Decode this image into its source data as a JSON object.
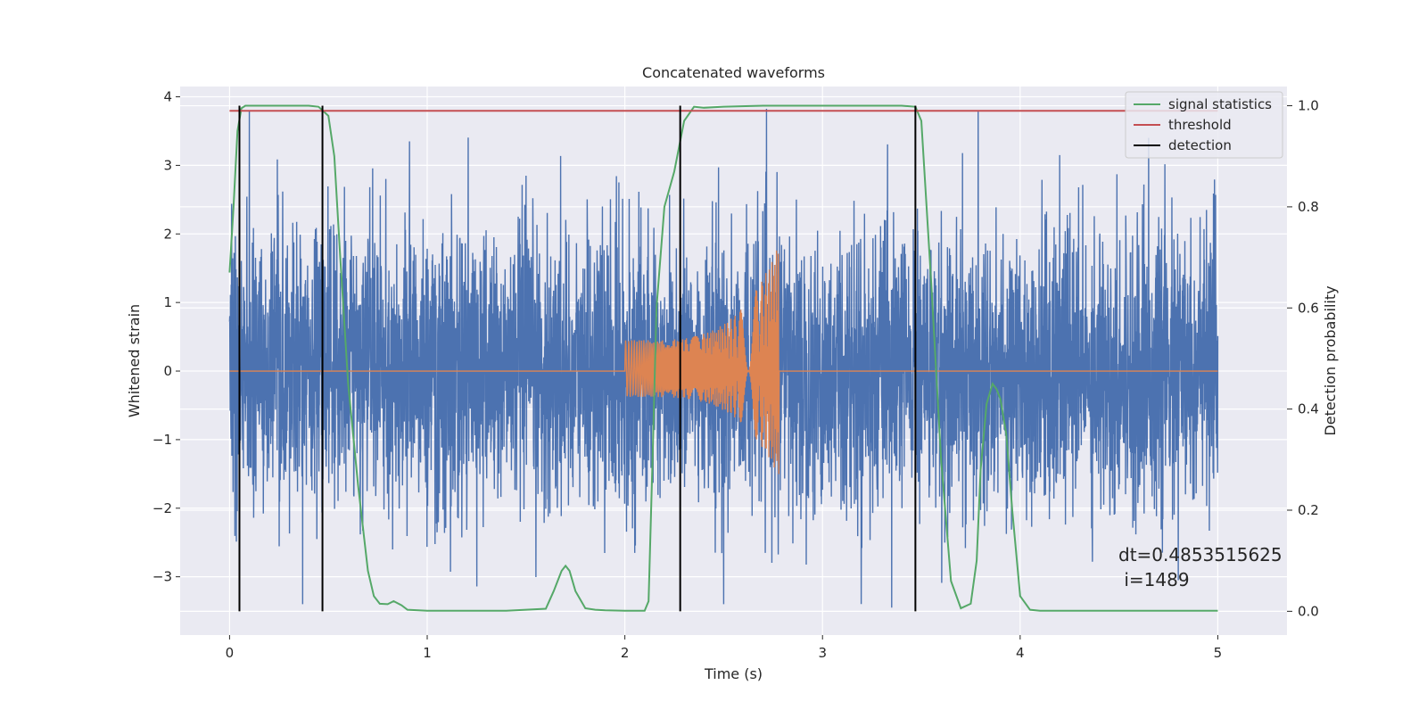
{
  "chart_data": {
    "type": "line",
    "title": "Concatenated waveforms",
    "xlabel": "Time (s)",
    "ylabel_left": "Whitened strain",
    "ylabel_right": "Detection probability",
    "xlim": [
      -0.25,
      5.35
    ],
    "ylim_left": [
      -3.85,
      4.15
    ],
    "ylim_right": [
      -0.047,
      1.038
    ],
    "x_ticks": [
      0,
      1,
      2,
      3,
      4,
      5
    ],
    "y_left_ticks": [
      -3,
      -2,
      -1,
      0,
      1,
      2,
      3,
      4
    ],
    "y_right_ticks": [
      0.0,
      0.2,
      0.4,
      0.6,
      0.8,
      1.0
    ],
    "grid": true,
    "legend_position": "top-right",
    "series": [
      {
        "name": "",
        "axis": "left",
        "color": "#4c72b0",
        "kind": "noise",
        "x_range": [
          0,
          5
        ],
        "typical_amplitude": 1.0,
        "peaks": [
          {
            "x": 0.1,
            "y": 3.8
          },
          {
            "x": 0.37,
            "y": -3.4
          },
          {
            "x": 0.91,
            "y": 3.35
          },
          {
            "x": 1.5,
            "y": 2.85
          },
          {
            "x": 2.5,
            "y": -3.4
          },
          {
            "x": 3.35,
            "y": -3.45
          },
          {
            "x": 4.2,
            "y": 3.15
          },
          {
            "x": 4.65,
            "y": 3.4
          },
          {
            "x": 4.8,
            "y": -3.05
          }
        ]
      },
      {
        "name": "",
        "axis": "left",
        "color": "#dd8452",
        "kind": "chirp",
        "x_range": [
          0,
          5
        ],
        "chirp_start": 2.0,
        "chirp_end": 2.78,
        "start_amplitude": 0.45,
        "peak_amplitude": 1.85,
        "min_amplitude": -1.55
      },
      {
        "name": "signal statistics",
        "axis": "right",
        "color": "#55a868",
        "x": [
          0,
          0.02,
          0.04,
          0.06,
          0.08,
          0.1,
          0.15,
          0.2,
          0.3,
          0.4,
          0.45,
          0.5,
          0.53,
          0.56,
          0.6,
          0.65,
          0.7,
          0.73,
          0.76,
          0.8,
          0.83,
          0.87,
          0.9,
          1.0,
          1.2,
          1.4,
          1.6,
          1.64,
          1.68,
          1.7,
          1.72,
          1.75,
          1.8,
          1.85,
          1.9,
          2.0,
          2.1,
          2.12,
          2.14,
          2.16,
          2.2,
          2.25,
          2.3,
          2.35,
          2.4,
          2.5,
          2.7,
          3.0,
          3.2,
          3.4,
          3.47,
          3.5,
          3.55,
          3.6,
          3.65,
          3.7,
          3.75,
          3.78,
          3.8,
          3.83,
          3.86,
          3.88,
          3.9,
          3.93,
          3.96,
          4.0,
          4.05,
          4.1,
          4.2,
          4.5,
          4.8,
          5.0
        ],
        "y": [
          0.67,
          0.8,
          0.95,
          0.995,
          1.0,
          1.0,
          1.0,
          1.0,
          1.0,
          1.0,
          0.998,
          0.98,
          0.9,
          0.7,
          0.45,
          0.25,
          0.08,
          0.03,
          0.015,
          0.014,
          0.02,
          0.012,
          0.003,
          0.001,
          0.001,
          0.001,
          0.005,
          0.04,
          0.08,
          0.09,
          0.08,
          0.04,
          0.006,
          0.003,
          0.002,
          0.001,
          0.001,
          0.02,
          0.3,
          0.6,
          0.8,
          0.87,
          0.97,
          0.998,
          0.996,
          0.998,
          1.0,
          1.0,
          1.0,
          1.0,
          0.998,
          0.97,
          0.65,
          0.3,
          0.06,
          0.006,
          0.015,
          0.1,
          0.28,
          0.41,
          0.45,
          0.44,
          0.42,
          0.35,
          0.2,
          0.03,
          0.003,
          0.001,
          0.001,
          0.001,
          0.001,
          0.001
        ]
      },
      {
        "name": "threshold",
        "axis": "right",
        "color": "#c44e52",
        "x": [
          0,
          5
        ],
        "y": [
          0.99,
          0.99
        ]
      },
      {
        "name": "detection",
        "axis": "right",
        "color": "#000000",
        "kind": "vertical_lines",
        "x": [
          0.05,
          0.47,
          2.28,
          3.47
        ],
        "y_range": [
          0.0,
          1.0
        ]
      }
    ],
    "annotation": {
      "line1": "dt=0.4853515625",
      "line2": " i=1489"
    }
  }
}
